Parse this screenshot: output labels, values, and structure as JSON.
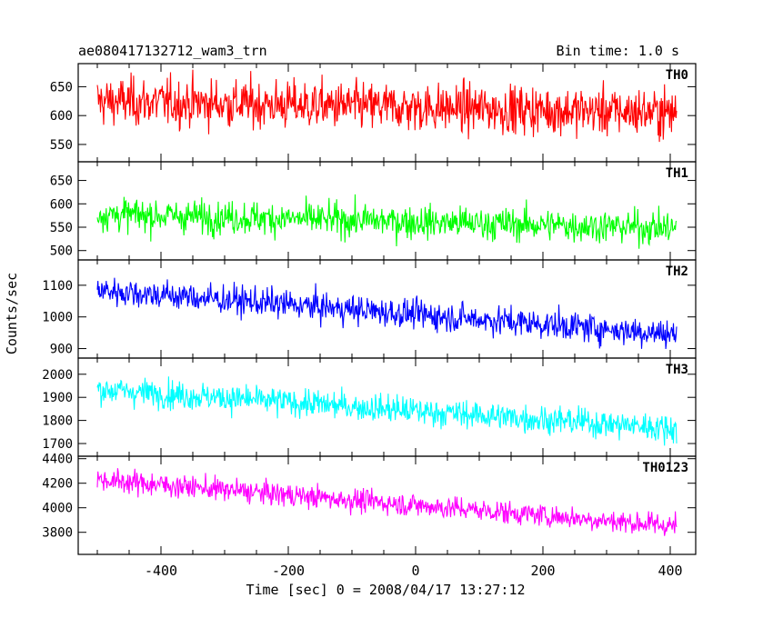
{
  "chart_data": {
    "type": "line",
    "title_left": "ae080417132712_wam3_trn",
    "title_right": "Bin time: 1.0 s",
    "xlabel": "Time [sec] 0 = 2008/04/17 13:27:12",
    "ylabel": "Counts/sec",
    "xlim": [
      -530,
      440
    ],
    "xticks": [
      -400,
      -200,
      0,
      200,
      400
    ],
    "x_start": -500,
    "x_end": 410,
    "x_step": 1.0,
    "grid": false,
    "panels": [
      {
        "name": "TH0",
        "color": "#ff0000",
        "ylim": [
          520,
          690
        ],
        "yticks": [
          550,
          600,
          650
        ],
        "trend": [
          625,
          605
        ],
        "noise": 38
      },
      {
        "name": "TH1",
        "color": "#00ff00",
        "ylim": [
          480,
          690
        ],
        "yticks": [
          500,
          550,
          600,
          650
        ],
        "trend": [
          578,
          548
        ],
        "noise": 32
      },
      {
        "name": "TH2",
        "color": "#0000ff",
        "ylim": [
          870,
          1180
        ],
        "yticks": [
          900,
          1000,
          1100
        ],
        "trend": [
          1085,
          945
        ],
        "noise": 42
      },
      {
        "name": "TH3",
        "color": "#00ffff",
        "ylim": [
          1645,
          2070
        ],
        "yticks": [
          1700,
          1800,
          1900,
          2000
        ],
        "trend": [
          1935,
          1765
        ],
        "noise": 55
      },
      {
        "name": "TH0123",
        "color": "#ff00ff",
        "ylim": [
          3620,
          4420
        ],
        "yticks": [
          3800,
          4000,
          4200,
          4400
        ],
        "trend": [
          4230,
          3850
        ],
        "noise": 85
      }
    ]
  }
}
